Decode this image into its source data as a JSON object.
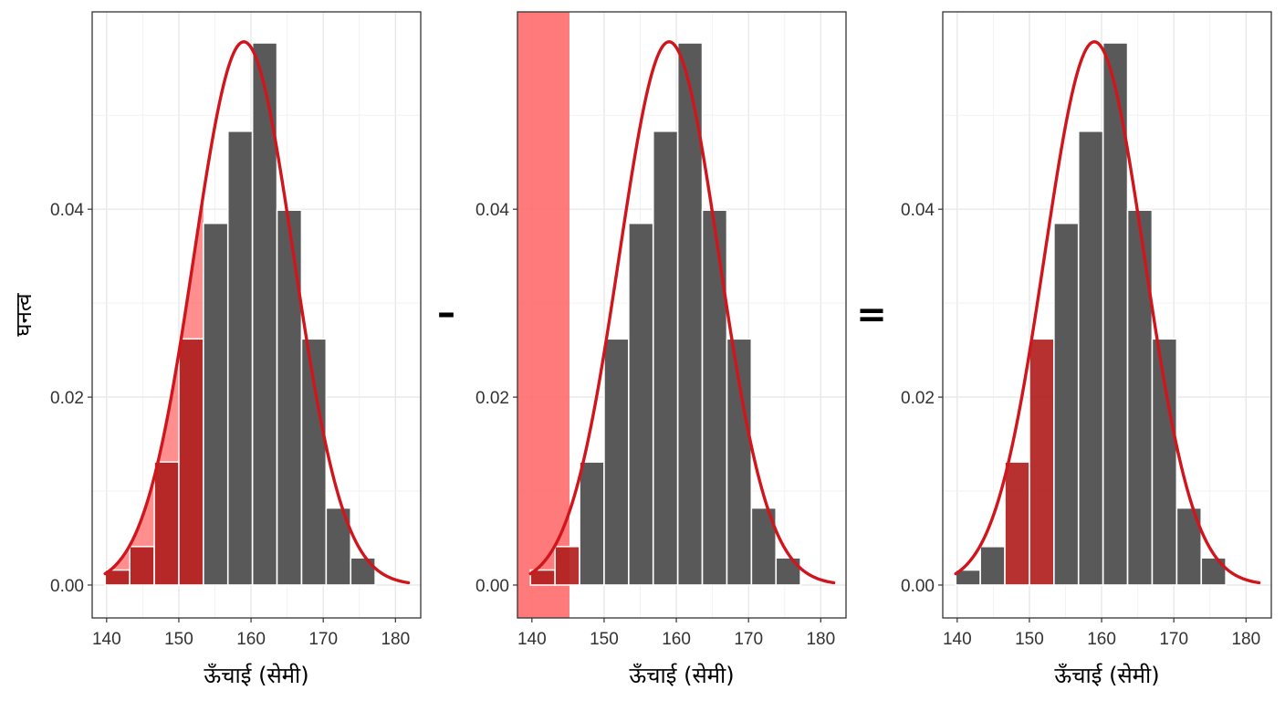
{
  "layout_labels": {
    "operator_1": "–",
    "operator_2": "="
  },
  "colors": {
    "bar": "#595959",
    "curve": "#d0161c",
    "shade_light": "#ff4d4d",
    "shade_dark": "#b0201f",
    "grid": "#e8e8e8",
    "frame": "#333333"
  },
  "chart_data": [
    {
      "type": "bar",
      "title": "",
      "xlabel": "ऊँचाई (सेमी)",
      "ylabel": "घनत्व",
      "xlim": [
        138,
        183.5
      ],
      "ylim": [
        -0.0035,
        0.061
      ],
      "xticks": [
        140,
        150,
        160,
        170,
        180
      ],
      "yticks": [
        "0.00",
        "0.02",
        "0.04"
      ],
      "bin_width": 3.4,
      "bin_starts": [
        139.8,
        143.2,
        146.6,
        150.0,
        153.4,
        156.8,
        160.2,
        163.6,
        167.0,
        170.4,
        173.8
      ],
      "values": [
        0.0016,
        0.0041,
        0.0131,
        0.0262,
        0.0385,
        0.0483,
        0.0577,
        0.0399,
        0.0262,
        0.0082,
        0.0029
      ],
      "curve": {
        "mean": 159,
        "sd": 6.9,
        "x_range": [
          139.8,
          181.8
        ]
      },
      "shaded_area_under_curve": [
        139.8,
        153.4
      ],
      "highlighted_bins": [
        0,
        1,
        2,
        3
      ],
      "shaded_band": null
    },
    {
      "type": "bar",
      "title": "",
      "xlabel": "ऊँचाई (सेमी)",
      "ylabel": "",
      "xlim": [
        138,
        183.5
      ],
      "ylim": [
        -0.0035,
        0.061
      ],
      "xticks": [
        140,
        150,
        160,
        170,
        180
      ],
      "yticks": [
        "0.00",
        "0.02",
        "0.04"
      ],
      "bin_width": 3.4,
      "bin_starts": [
        139.8,
        143.2,
        146.6,
        150.0,
        153.4,
        156.8,
        160.2,
        163.6,
        167.0,
        170.4,
        173.8
      ],
      "values": [
        0.0016,
        0.0041,
        0.0131,
        0.0262,
        0.0385,
        0.0483,
        0.0577,
        0.0399,
        0.0262,
        0.0082,
        0.0029
      ],
      "curve": {
        "mean": 159,
        "sd": 6.9,
        "x_range": [
          139.8,
          181.8
        ]
      },
      "shaded_area_under_curve": null,
      "highlighted_bins": [
        0,
        1
      ],
      "shaded_band": [
        138,
        145.2
      ]
    },
    {
      "type": "bar",
      "title": "",
      "xlabel": "ऊँचाई (सेमी)",
      "ylabel": "",
      "xlim": [
        138,
        183.5
      ],
      "ylim": [
        -0.0035,
        0.061
      ],
      "xticks": [
        140,
        150,
        160,
        170,
        180
      ],
      "yticks": [
        "0.00",
        "0.02",
        "0.04"
      ],
      "bin_width": 3.4,
      "bin_starts": [
        139.8,
        143.2,
        146.6,
        150.0,
        153.4,
        156.8,
        160.2,
        163.6,
        167.0,
        170.4,
        173.8
      ],
      "values": [
        0.0016,
        0.0041,
        0.0131,
        0.0262,
        0.0385,
        0.0483,
        0.0577,
        0.0399,
        0.0262,
        0.0082,
        0.0029
      ],
      "curve": {
        "mean": 159,
        "sd": 6.9,
        "x_range": [
          139.8,
          181.8
        ]
      },
      "shaded_area_under_curve": null,
      "highlighted_bins": [
        2,
        3
      ],
      "shaded_band": null
    }
  ]
}
